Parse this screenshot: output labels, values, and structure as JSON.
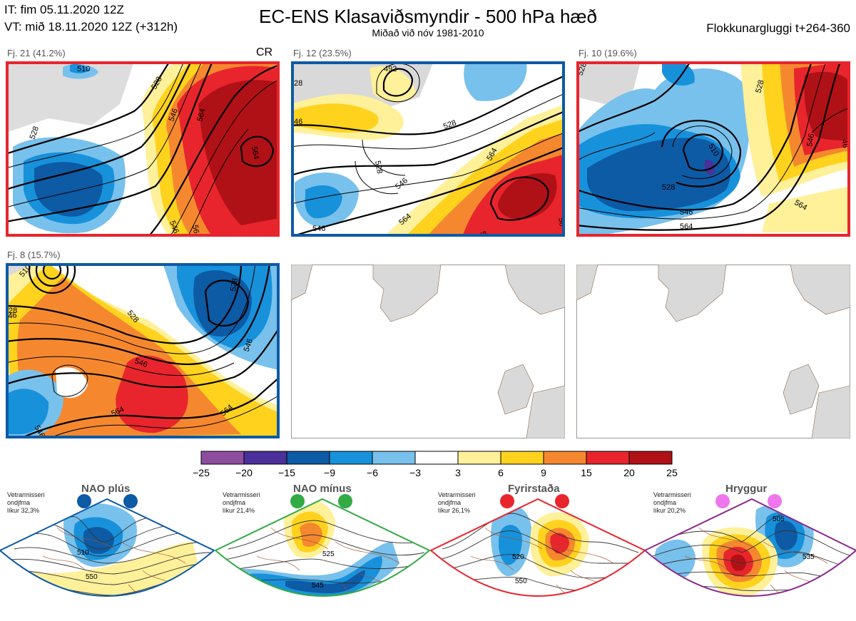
{
  "header": {
    "initial_time": "IT: fim 05.11.2020 12Z",
    "valid_time": "VT: mið 18.11.2020 12Z  (+312h)",
    "title": "EC-ENS Klasaviðsmyndir - 500 hPa hæð",
    "subtitle": "Miðað við nóv 1981-2010",
    "window": "Flokkunargluggi t+264-360"
  },
  "clusters": [
    {
      "label": "Fj. 21 (41.2%)",
      "border_color": "#e8252c",
      "tag": "CR",
      "contours": [
        "510",
        "528",
        "528",
        "546",
        "564",
        "564",
        "56",
        "546"
      ]
    },
    {
      "label": "Fj. 12 (23.5%)",
      "border_color": "#0d5aa5",
      "contours": [
        "492",
        "28",
        "46",
        "528",
        "528",
        "546",
        "546",
        "564",
        "564",
        "56",
        "56"
      ]
    },
    {
      "label": "Fj. 10 (19.6%)",
      "border_color": "#e8252c",
      "contours": [
        "510",
        "528",
        "546",
        "528",
        "546",
        "564",
        "564",
        "528",
        "46"
      ]
    },
    {
      "label": "Fj. 8 (15.7%)",
      "border_color": "#0d5aa5",
      "contours": [
        "510",
        "28",
        "528",
        "46",
        "528",
        "546",
        "546",
        "546",
        "564",
        "564"
      ]
    }
  ],
  "colorbar": {
    "ticks": [
      "−25",
      "−20",
      "−15",
      "−9",
      "−6",
      "−3",
      "3",
      "6",
      "9",
      "15",
      "20",
      "25"
    ],
    "colors": [
      "#8e4ea0",
      "#4b2f9a",
      "#0d5aa5",
      "#1891db",
      "#78c1ec",
      "#ffffff",
      "#fff09a",
      "#ffd21e",
      "#f5882e",
      "#e8252c",
      "#b01116"
    ]
  },
  "regimes": [
    {
      "name": "NAO plús",
      "info": [
        "Vetrarmisseri",
        "ondjfma",
        "líkur 32,3%"
      ],
      "color": "#0d5aa5",
      "contours": [
        "510",
        "550"
      ]
    },
    {
      "name": "NAO mínus",
      "info": [
        "Vetrarmisseri",
        "ondjfma",
        "líkur 21,4%"
      ],
      "color": "#33aa44",
      "contours": [
        "525",
        "545",
        "565"
      ]
    },
    {
      "name": "Fyrirstaða",
      "info": [
        "Vetrarmisseri",
        "ondjfma",
        "líkur 26,1%"
      ],
      "color": "#e8252c",
      "contours": [
        "520",
        "550",
        "560"
      ]
    },
    {
      "name": "Hryggur",
      "info": [
        "Vetrarmisseri",
        "ondjfma",
        "líkur 20,2%"
      ],
      "color": "#8b2b8e",
      "contours": [
        "505",
        "535",
        "560"
      ]
    }
  ]
}
